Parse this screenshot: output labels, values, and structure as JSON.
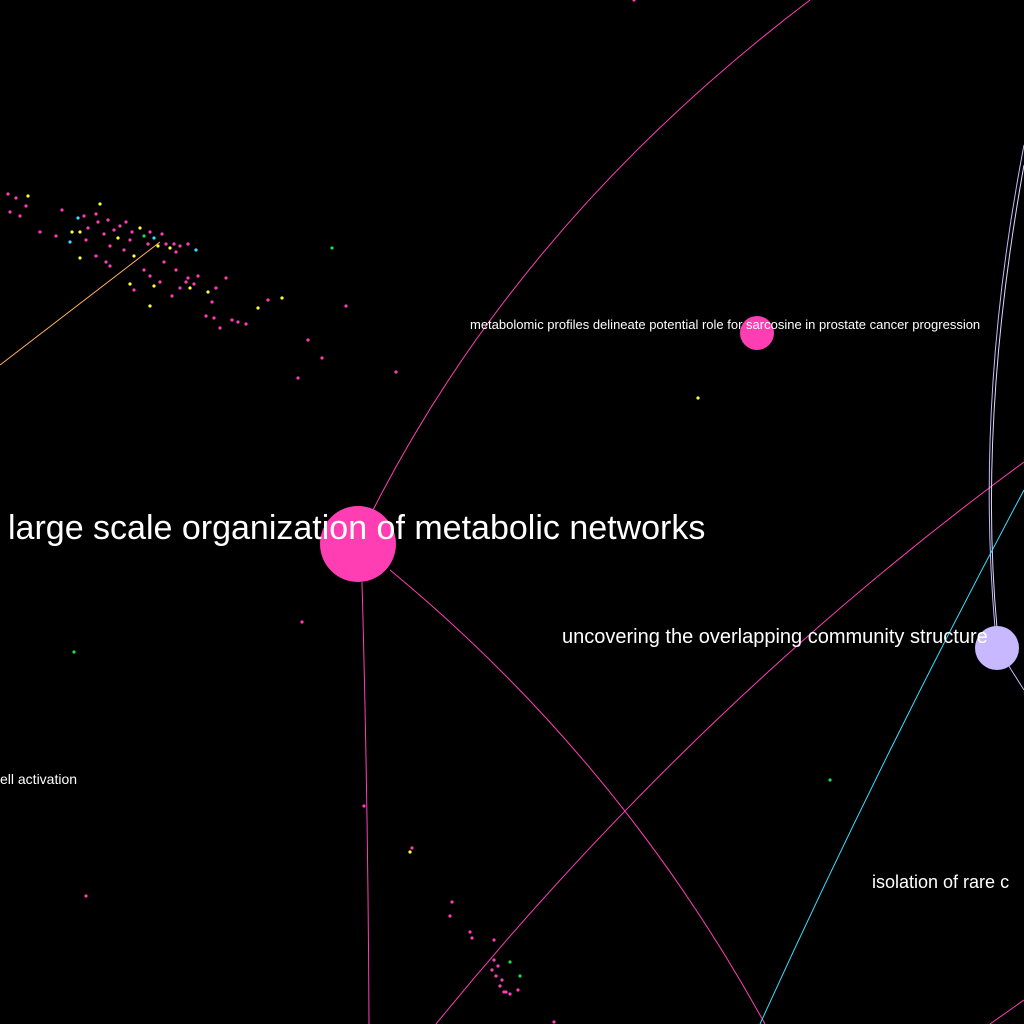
{
  "graph": {
    "background": "#000000",
    "labels": {
      "large_scale": "large scale organization of metabolic networks",
      "metabolomic": "metabolomic profiles delineate potential role for sarcosine in prostate cancer progression",
      "uncovering": "uncovering the overlapping community structure",
      "isolation": "isolation of rare c",
      "cell_activation": "ell activation"
    },
    "colors": {
      "pink": "#ff3eb4",
      "lavender": "#c8b8ff",
      "yellow": "#ffff33",
      "cyan": "#33e0ff",
      "green": "#22dd44",
      "orange": "#ffb060"
    }
  }
}
